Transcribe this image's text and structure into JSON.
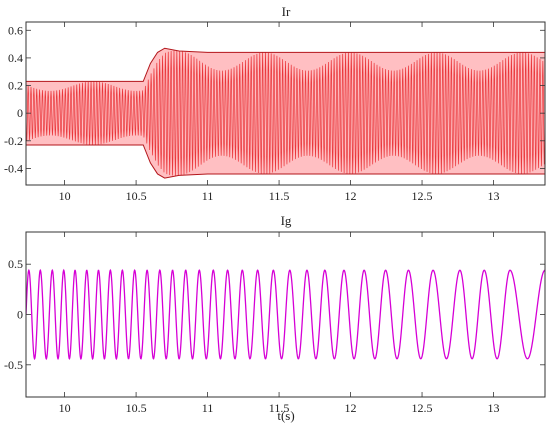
{
  "chart_data": [
    {
      "type": "line",
      "title": "Ir",
      "xlabel": "",
      "ylabel": "",
      "xlim": [
        9.73,
        13.36
      ],
      "ylim": [
        -0.52,
        0.66
      ],
      "xticks": [
        10,
        10.5,
        11,
        11.5,
        12,
        12.5,
        13
      ],
      "xtick_labels": [
        "10",
        "10.5",
        "11",
        "11.5",
        "12",
        "12.5",
        "13"
      ],
      "yticks": [
        -0.4,
        -0.2,
        0,
        0.2,
        0.4,
        0.6
      ],
      "ytick_labels": [
        "-0.4",
        "-0.2",
        "0",
        "0.2",
        "0.4",
        "0.6"
      ],
      "grid": false,
      "series": [
        {
          "color": "#e8262b",
          "fill_color": "#ff8a8f",
          "envelope": {
            "x": [
              9.73,
              10.55,
              10.6,
              10.65,
              10.7,
              10.8,
              11.0,
              12.0,
              13.0,
              13.36
            ],
            "upper": [
              0.23,
              0.23,
              0.36,
              0.44,
              0.47,
              0.45,
              0.44,
              0.44,
              0.44,
              0.44
            ],
            "lower": [
              -0.23,
              -0.23,
              -0.36,
              -0.44,
              -0.47,
              -0.45,
              -0.44,
              -0.44,
              -0.44,
              -0.44
            ]
          },
          "oscillation_period_s": 0.02
        }
      ]
    },
    {
      "type": "line",
      "title": "Ig",
      "xlabel": "t(s)",
      "ylabel": "",
      "xlim": [
        9.73,
        13.36
      ],
      "ylim": [
        -0.82,
        0.82
      ],
      "xticks": [
        10,
        10.5,
        11,
        11.5,
        12,
        12.5,
        13
      ],
      "xtick_labels": [
        "10",
        "10.5",
        "11",
        "11.5",
        "12",
        "12.5",
        "13"
      ],
      "yticks": [
        -0.5,
        0,
        0.5
      ],
      "ytick_labels": [
        "-0.5",
        "0",
        "0.5"
      ],
      "grid": false,
      "series": [
        {
          "color": "#d600d6",
          "amplitude": 0.44,
          "peak_times": [
            9.75,
            9.83,
            9.914,
            9.994,
            10.073,
            10.155,
            10.237,
            10.32,
            10.404,
            10.49,
            10.577,
            10.666,
            10.755,
            10.847,
            10.942,
            11.04,
            11.14,
            11.243,
            11.35,
            11.46,
            11.575,
            11.695,
            11.82,
            11.954,
            12.095,
            12.245,
            12.405,
            12.577,
            12.765,
            12.935,
            13.115,
            13.36
          ]
        }
      ]
    }
  ]
}
